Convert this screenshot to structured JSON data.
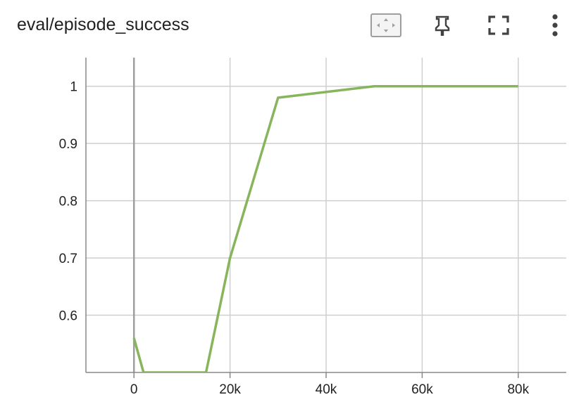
{
  "card": {
    "title": "eval/episode_success",
    "toolbar": [
      {
        "name": "fit-domain-button",
        "icon": "fit-to-data-icon"
      },
      {
        "name": "pin-button",
        "icon": "pin-icon"
      },
      {
        "name": "fullscreen-button",
        "icon": "fullscreen-icon"
      },
      {
        "name": "more-options-button",
        "icon": "more-vert-icon"
      }
    ]
  },
  "chart_data": {
    "type": "line",
    "title": "eval/episode_success",
    "xlabel": "",
    "ylabel": "",
    "xlim": [
      -10000,
      90000
    ],
    "ylim": [
      0.5,
      1.05
    ],
    "grid": true,
    "x_ticks": [
      0,
      20000,
      40000,
      60000,
      80000
    ],
    "x_tick_labels": [
      "0",
      "20k",
      "40k",
      "60k",
      "80k"
    ],
    "y_ticks": [
      0.6,
      0.7,
      0.8,
      0.9,
      1
    ],
    "y_tick_labels": [
      "0.6",
      "0.7",
      "0.8",
      "0.9",
      "1"
    ],
    "series": [
      {
        "color": "#87b55b",
        "x": [
          0,
          2000,
          15000,
          20000,
          30000,
          50000,
          80000
        ],
        "y": [
          0.56,
          0.5,
          0.5,
          0.7,
          0.98,
          1.0,
          1.0
        ]
      }
    ]
  }
}
